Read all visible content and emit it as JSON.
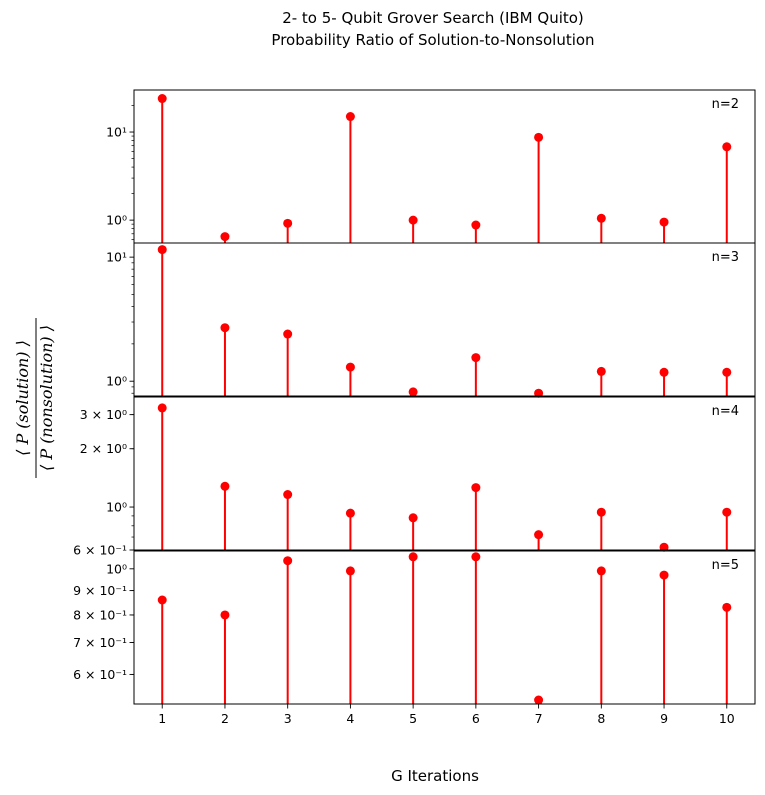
{
  "chart_data": {
    "type": "stem",
    "title_line1": "2- to 5- Qubit Grover Search (IBM Quito)",
    "title_line2": "Probability Ratio of Solution-to-Nonsolution",
    "xlabel": "G Iterations",
    "ylabel_numerator": "⟨ P (solution) ⟩",
    "ylabel_denominator": "⟨ P (nonsolution) ⟩",
    "x": [
      1,
      2,
      3,
      4,
      5,
      6,
      7,
      8,
      9,
      10
    ],
    "color": "#ff0000",
    "yscale": "log",
    "panels": [
      {
        "label": "n=2",
        "values": [
          24,
          0.65,
          0.92,
          15,
          1.0,
          0.88,
          8.7,
          1.05,
          0.95,
          6.8
        ],
        "ylim": [
          0.55,
          30
        ],
        "yticks": [
          {
            "value": 1,
            "label": "10⁰"
          },
          {
            "value": 10,
            "label": "10¹"
          }
        ]
      },
      {
        "label": "n=3",
        "values": [
          11.5,
          2.7,
          2.4,
          1.3,
          0.82,
          1.55,
          0.8,
          1.2,
          1.18,
          1.18
        ],
        "ylim": [
          0.76,
          13
        ],
        "yticks": [
          {
            "value": 1,
            "label": "10⁰"
          },
          {
            "value": 10,
            "label": "10¹"
          }
        ]
      },
      {
        "label": "n=4",
        "values": [
          3.25,
          1.28,
          1.16,
          0.93,
          0.88,
          1.26,
          0.72,
          0.94,
          0.62,
          0.94
        ],
        "ylim": [
          0.6,
          3.7
        ],
        "yticks": [
          {
            "value": 0.6,
            "label": "6 × 10⁻¹"
          },
          {
            "value": 1,
            "label": "10⁰"
          },
          {
            "value": 2,
            "label": "2 × 10⁰"
          },
          {
            "value": 3,
            "label": "3 × 10⁰"
          }
        ]
      },
      {
        "label": "n=5",
        "values": [
          0.86,
          0.8,
          1.04,
          0.99,
          1.06,
          1.06,
          0.53,
          0.99,
          0.97,
          0.83
        ],
        "ylim": [
          0.52,
          1.09
        ],
        "yticks": [
          {
            "value": 0.6,
            "label": "6 × 10⁻¹"
          },
          {
            "value": 0.7,
            "label": "7 × 10⁻¹"
          },
          {
            "value": 0.8,
            "label": "8 × 10⁻¹"
          },
          {
            "value": 0.9,
            "label": "9 × 10⁻¹"
          },
          {
            "value": 1,
            "label": "10⁰"
          }
        ]
      }
    ],
    "xlim": [
      0.55,
      10.45
    ]
  }
}
